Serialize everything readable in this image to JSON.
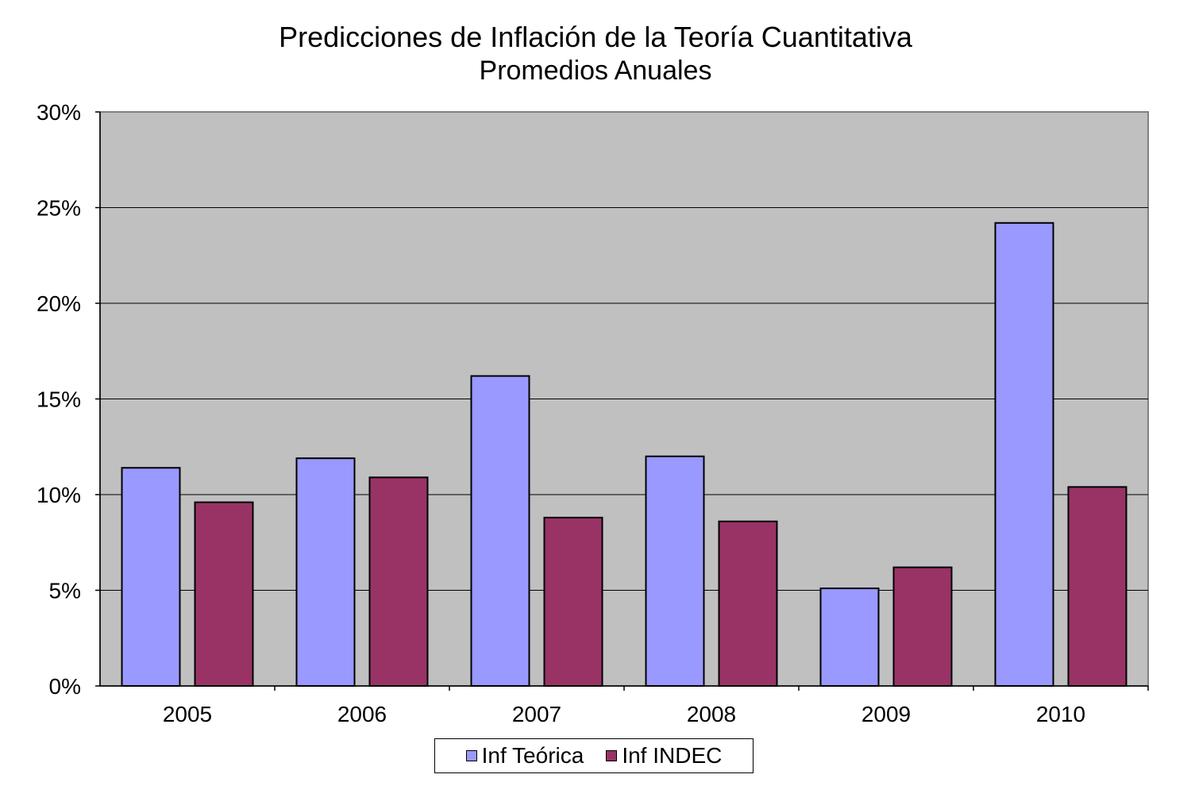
{
  "chart_data": {
    "type": "bar",
    "title": "Predicciones de Inflación de la Teoría Cuantitativa",
    "subtitle": "Promedios Anuales",
    "xlabel": "",
    "ylabel": "",
    "categories": [
      "2005",
      "2006",
      "2007",
      "2008",
      "2009",
      "2010"
    ],
    "series": [
      {
        "name": "Inf Teórica",
        "color": "#9999ff",
        "values": [
          11.4,
          11.9,
          16.2,
          12.0,
          5.1,
          24.2
        ]
      },
      {
        "name": "Inf INDEC",
        "color": "#993366",
        "values": [
          9.6,
          10.9,
          8.8,
          8.6,
          6.2,
          10.4
        ]
      }
    ],
    "ylim": [
      0,
      30
    ],
    "yticks": [
      0,
      5,
      10,
      15,
      20,
      25,
      30
    ],
    "ytick_labels": [
      "0%",
      "5%",
      "10%",
      "15%",
      "20%",
      "25%",
      "30%"
    ],
    "grid": true,
    "plot_background": "#c0c0c0",
    "legend_position": "bottom-center"
  }
}
